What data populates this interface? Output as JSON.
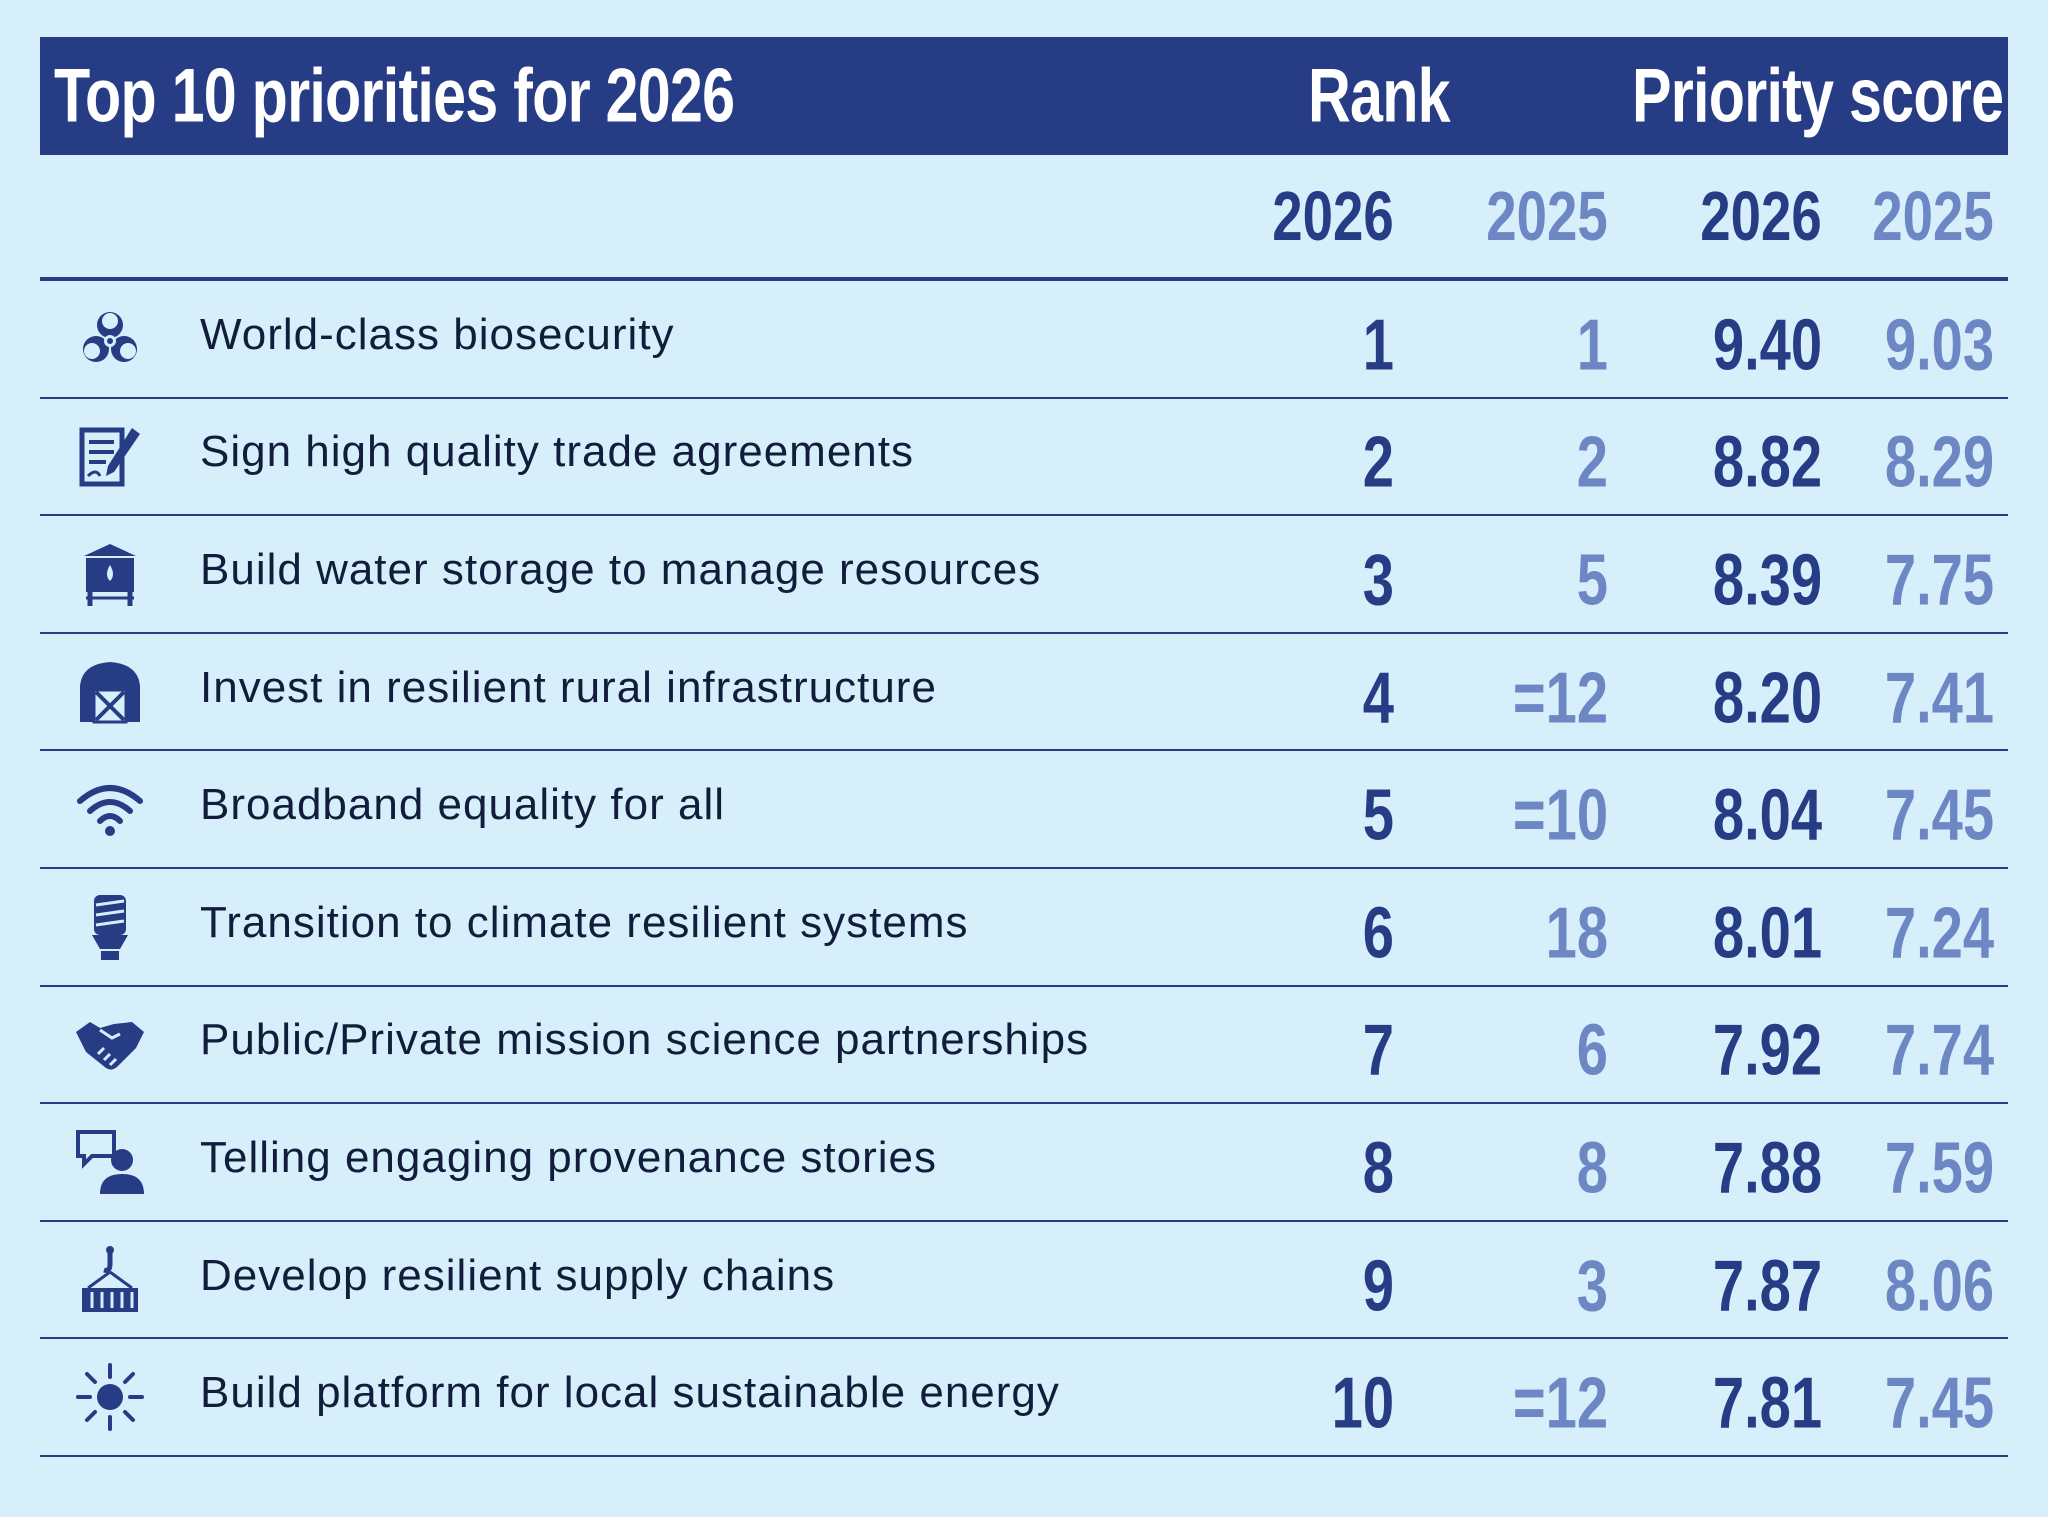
{
  "header": {
    "title": "Top 10 priorities for 2026",
    "rank_label": "Rank",
    "score_label": "Priority score"
  },
  "years": {
    "rank_2026": "2026",
    "rank_2025": "2025",
    "score_2026": "2026",
    "score_2025": "2025"
  },
  "colors": {
    "navy": "#263c85",
    "light_blue_text": "#6d86c4",
    "background": "#d6effb"
  },
  "chart_data": {
    "type": "table",
    "title": "Top 10 priorities for 2026",
    "columns": [
      "",
      "Rank 2026",
      "Rank 2025",
      "Priority score 2026",
      "Priority score 2025"
    ],
    "rows": [
      {
        "icon": "biohazard-icon",
        "label": "World-class biosecurity",
        "rank_2026": "1",
        "rank_2025": "1",
        "score_2026": "9.40",
        "score_2025": "9.03"
      },
      {
        "icon": "document-signature-icon",
        "label": "Sign high quality trade agreements",
        "rank_2026": "2",
        "rank_2025": "2",
        "score_2026": "8.82",
        "score_2025": "8.29"
      },
      {
        "icon": "water-tank-icon",
        "label": "Build water storage to manage resources",
        "rank_2026": "3",
        "rank_2025": "5",
        "score_2026": "8.39",
        "score_2025": "7.75"
      },
      {
        "icon": "barn-icon",
        "label": "Invest in resilient rural infrastructure",
        "rank_2026": "4",
        "rank_2025": "=12",
        "score_2026": "8.20",
        "score_2025": "7.41"
      },
      {
        "icon": "wifi-icon",
        "label": "Broadband equality for all",
        "rank_2026": "5",
        "rank_2025": "=10",
        "score_2026": "8.04",
        "score_2025": "7.45"
      },
      {
        "icon": "lightbulb-icon",
        "label": "Transition to climate resilient systems",
        "rank_2026": "6",
        "rank_2025": "18",
        "score_2026": "8.01",
        "score_2025": "7.24"
      },
      {
        "icon": "handshake-icon",
        "label": "Public/Private mission science partnerships",
        "rank_2026": "7",
        "rank_2025": "6",
        "score_2026": "7.92",
        "score_2025": "7.74"
      },
      {
        "icon": "speech-person-icon",
        "label": "Telling engaging provenance stories",
        "rank_2026": "8",
        "rank_2025": "8",
        "score_2026": "7.88",
        "score_2025": "7.59"
      },
      {
        "icon": "crane-container-icon",
        "label": "Develop resilient supply chains",
        "rank_2026": "9",
        "rank_2025": "3",
        "score_2026": "7.87",
        "score_2025": "8.06"
      },
      {
        "icon": "sun-icon",
        "label": "Build platform for local sustainable energy",
        "rank_2026": "10",
        "rank_2025": "=12",
        "score_2026": "7.81",
        "score_2025": "7.45"
      }
    ]
  }
}
